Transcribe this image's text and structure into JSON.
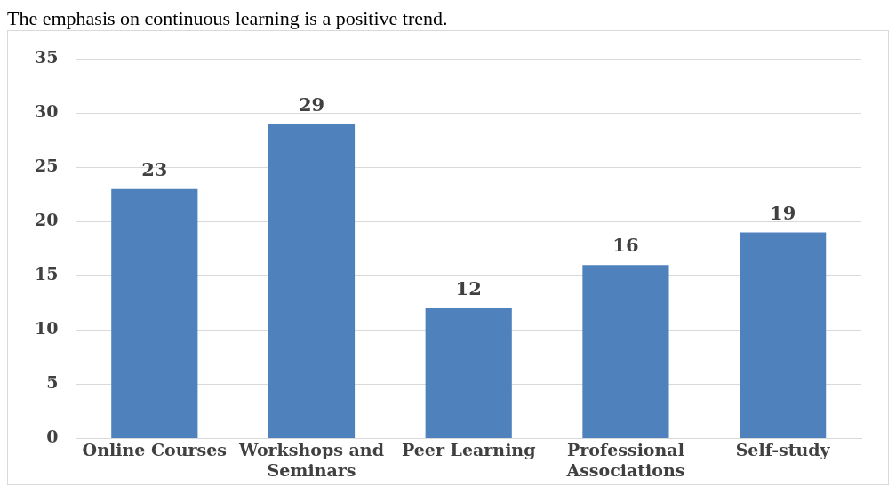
{
  "chart_data": {
    "type": "bar",
    "annotations": [
      "The emphasis on continuous learning is a positive trend."
    ],
    "categories": [
      [
        "Online Courses"
      ],
      [
        "Workshops and",
        "Seminars"
      ],
      [
        "Peer Learning"
      ],
      [
        "Professional",
        "Associations"
      ],
      [
        "Self-study"
      ]
    ],
    "values": [
      23,
      29,
      12,
      16,
      19
    ],
    "color": "#4f81bd",
    "ylim": [
      0,
      35
    ],
    "yticks": [
      0,
      5,
      10,
      15,
      20,
      25,
      30,
      35
    ],
    "grid": "y",
    "data_labels": true,
    "legend": false
  }
}
